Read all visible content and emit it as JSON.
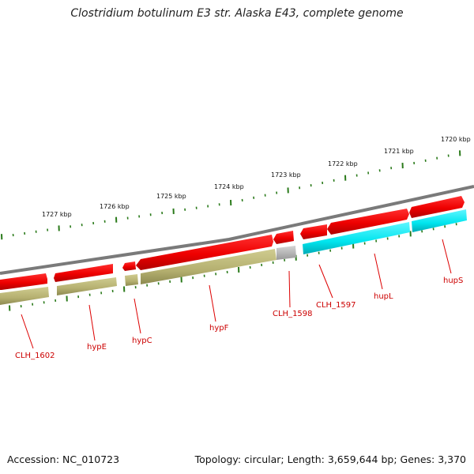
{
  "title": "Clostridium botulinum E3 str. Alaska E43, complete genome",
  "footer": {
    "accession": "Accession: NC_010723",
    "summary": "Topology: circular; Length: 3,659,644 bp; Genes: 3,370"
  },
  "ruler_labels": [
    "1727 kbp",
    "1726 kbp",
    "1725 kbp",
    "1724 kbp",
    "1723 kbp",
    "1722 kbp",
    "1721 kbp",
    "1720 kbp"
  ],
  "gene_labels": [
    "CLH_1602",
    "hypE",
    "hypC",
    "hypF",
    "CLH_1598",
    "CLH_1597",
    "hupL",
    "hupS"
  ],
  "colors": {
    "cds": "#ee0000",
    "backbone": "#888888",
    "olive": "#b5b070",
    "gray_feature": "#b8b8b8",
    "cyan_feature": "#00e5ee",
    "ticks": "#2a7a1a",
    "label": "#cc0000"
  }
}
